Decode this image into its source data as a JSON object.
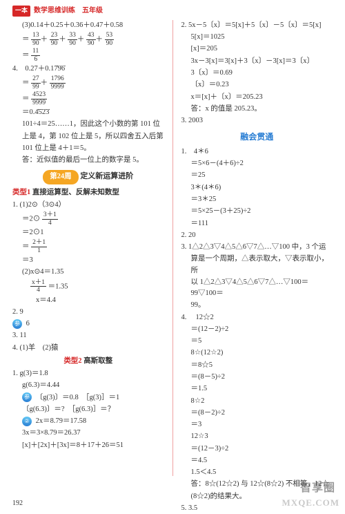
{
  "header": {
    "badge": "一本",
    "title": "数学思维训练　五年级"
  },
  "colors": {
    "red": "#d62828",
    "blue": "#2b7fd4",
    "orange": "#f5a623",
    "text": "#333333",
    "divider": "#f0a0a0",
    "bg": "#ffffff"
  },
  "left": {
    "l1": "(3)0.14＋0.25＋0.36＋0.47＋0.58",
    "frac_a": {
      "pre": "＝",
      "n1": "13",
      "d1": "90",
      "n2": "23",
      "d2": "90",
      "n3": "33",
      "d3": "90",
      "n4": "43",
      "d4": "90",
      "n5": "53",
      "d5": "90"
    },
    "frac_b": {
      "pre": "＝",
      "n": "11",
      "d": "6"
    },
    "l4": "4.　0.27＋0.17̇9̇6̇",
    "frac_c": {
      "pre": "＝",
      "n1": "27",
      "d1": "99",
      "n2": "1796",
      "d2": "9999"
    },
    "frac_d": {
      "pre": "＝",
      "n": "4523",
      "d": "9999"
    },
    "l5": "＝0.4̇5̇2̇3̇",
    "l6": "101÷4＝25……1，因此这个小数的第 101 位",
    "l7": "上是 4，第 102 位上是 5，所以四舍五入后第",
    "l8": "101 位上是 4＋1＝5。",
    "l9": "答：近似值的最后一位上的数字是 5。",
    "chapter_badge": "第24周",
    "chapter_text": "定义新运算进阶",
    "cat1_label": "类型1",
    "cat1_text": "直接运算型、反解未知数型",
    "p1": "1. (1)2⊙（3⊙4）",
    "frac_e": {
      "pre": "＝2⊙",
      "n": "3＋1",
      "d": "4"
    },
    "p1b": "＝2⊙1",
    "frac_f": {
      "pre": "＝",
      "n": "2＋1",
      "d": "1"
    },
    "p1c": "＝3",
    "p2": "(2)x⊙4＝1.35",
    "frac_g": {
      "pre": "",
      "n": "x＋1",
      "d": "4",
      "post": "＝1.35"
    },
    "p2b": "x＝4.4",
    "p3": "2. 9",
    "p3b_badge": "参",
    "p3b": "6",
    "p4": "3. 11",
    "p5": "4. (1)羊　(2)猿",
    "cat2_label": "类型2",
    "cat2_text": "高斯取整",
    "g1": "1. g(3)＝1.8",
    "g2": "g(6.3)＝4.44",
    "g3a_badge": "参",
    "g3": "〔g(3)〕＝0.8　［g(3)］＝1",
    "g4": "〔g(6.3)〕＝?　［g(6.3)］＝？",
    "g5a_badge": "②",
    "g5": "2x＝8.79＝17.58",
    "g6": "3x＝3×8.79＝26.37",
    "g7": "[x]＋[2x]＋[3x]＝8＋17＋26＝51"
  },
  "right": {
    "r1": "2. 5x－5〔x〕＝5[x]＋5〔x〕－5〔x〕＝5[x]",
    "r2": "5[x]＝1025",
    "r3": "[x]＝205",
    "r4": "3x－3[x]＝3[x]＋3〔x〕－3[x]＝3〔x〕",
    "r5": "3〔x〕＝0.69",
    "r6": "〔x〕＝0.23",
    "r7": "x＝[x]＋〔x〕＝205.23",
    "r8": "答：x 的值是 205.23。",
    "r9": "3. 2003",
    "section": "融会贯通",
    "s1": "1.　4＊6",
    "s2": "＝5×6－(4＋6)÷2",
    "s3": "＝25",
    "s4": "3＊(4＊6)",
    "s5": "＝3＊25",
    "s6": "＝5×25－(3＋25)÷2",
    "s7": "＝111",
    "s8": "2. 20",
    "s9": "3. 1△2△3▽4△5△6▽7△…▽100 中，3 个运",
    "s9b": "算是一个周期，△表示取大，▽表示取小，所",
    "s9c": "以 1△2△3▽4△5△6▽7△…▽100＝99▽100＝",
    "s9d": "99。",
    "s10": "4.　 12☆2",
    "s11": "＝(12－2)÷2",
    "s12": "＝5",
    "s13": "8☆(12☆2)",
    "s14": "＝8☆5",
    "s15": "＝(8－5)÷2",
    "s16": "＝1.5",
    "s17": "8☆2",
    "s18": "＝(8－2)÷2",
    "s19": "＝3",
    "s20": "12☆3",
    "s21": "＝(12－3)÷2",
    "s22": "＝4.5",
    "s23": "1.5＜4.5",
    "s24": "答：8☆(12☆2) 与 12☆(8☆2) 不相等，12☆",
    "s25": "(8☆2)的结果大。",
    "s26": "5. 3.5"
  },
  "page": "192",
  "wm1": "智享圈",
  "wm2": "MXQE.COM"
}
